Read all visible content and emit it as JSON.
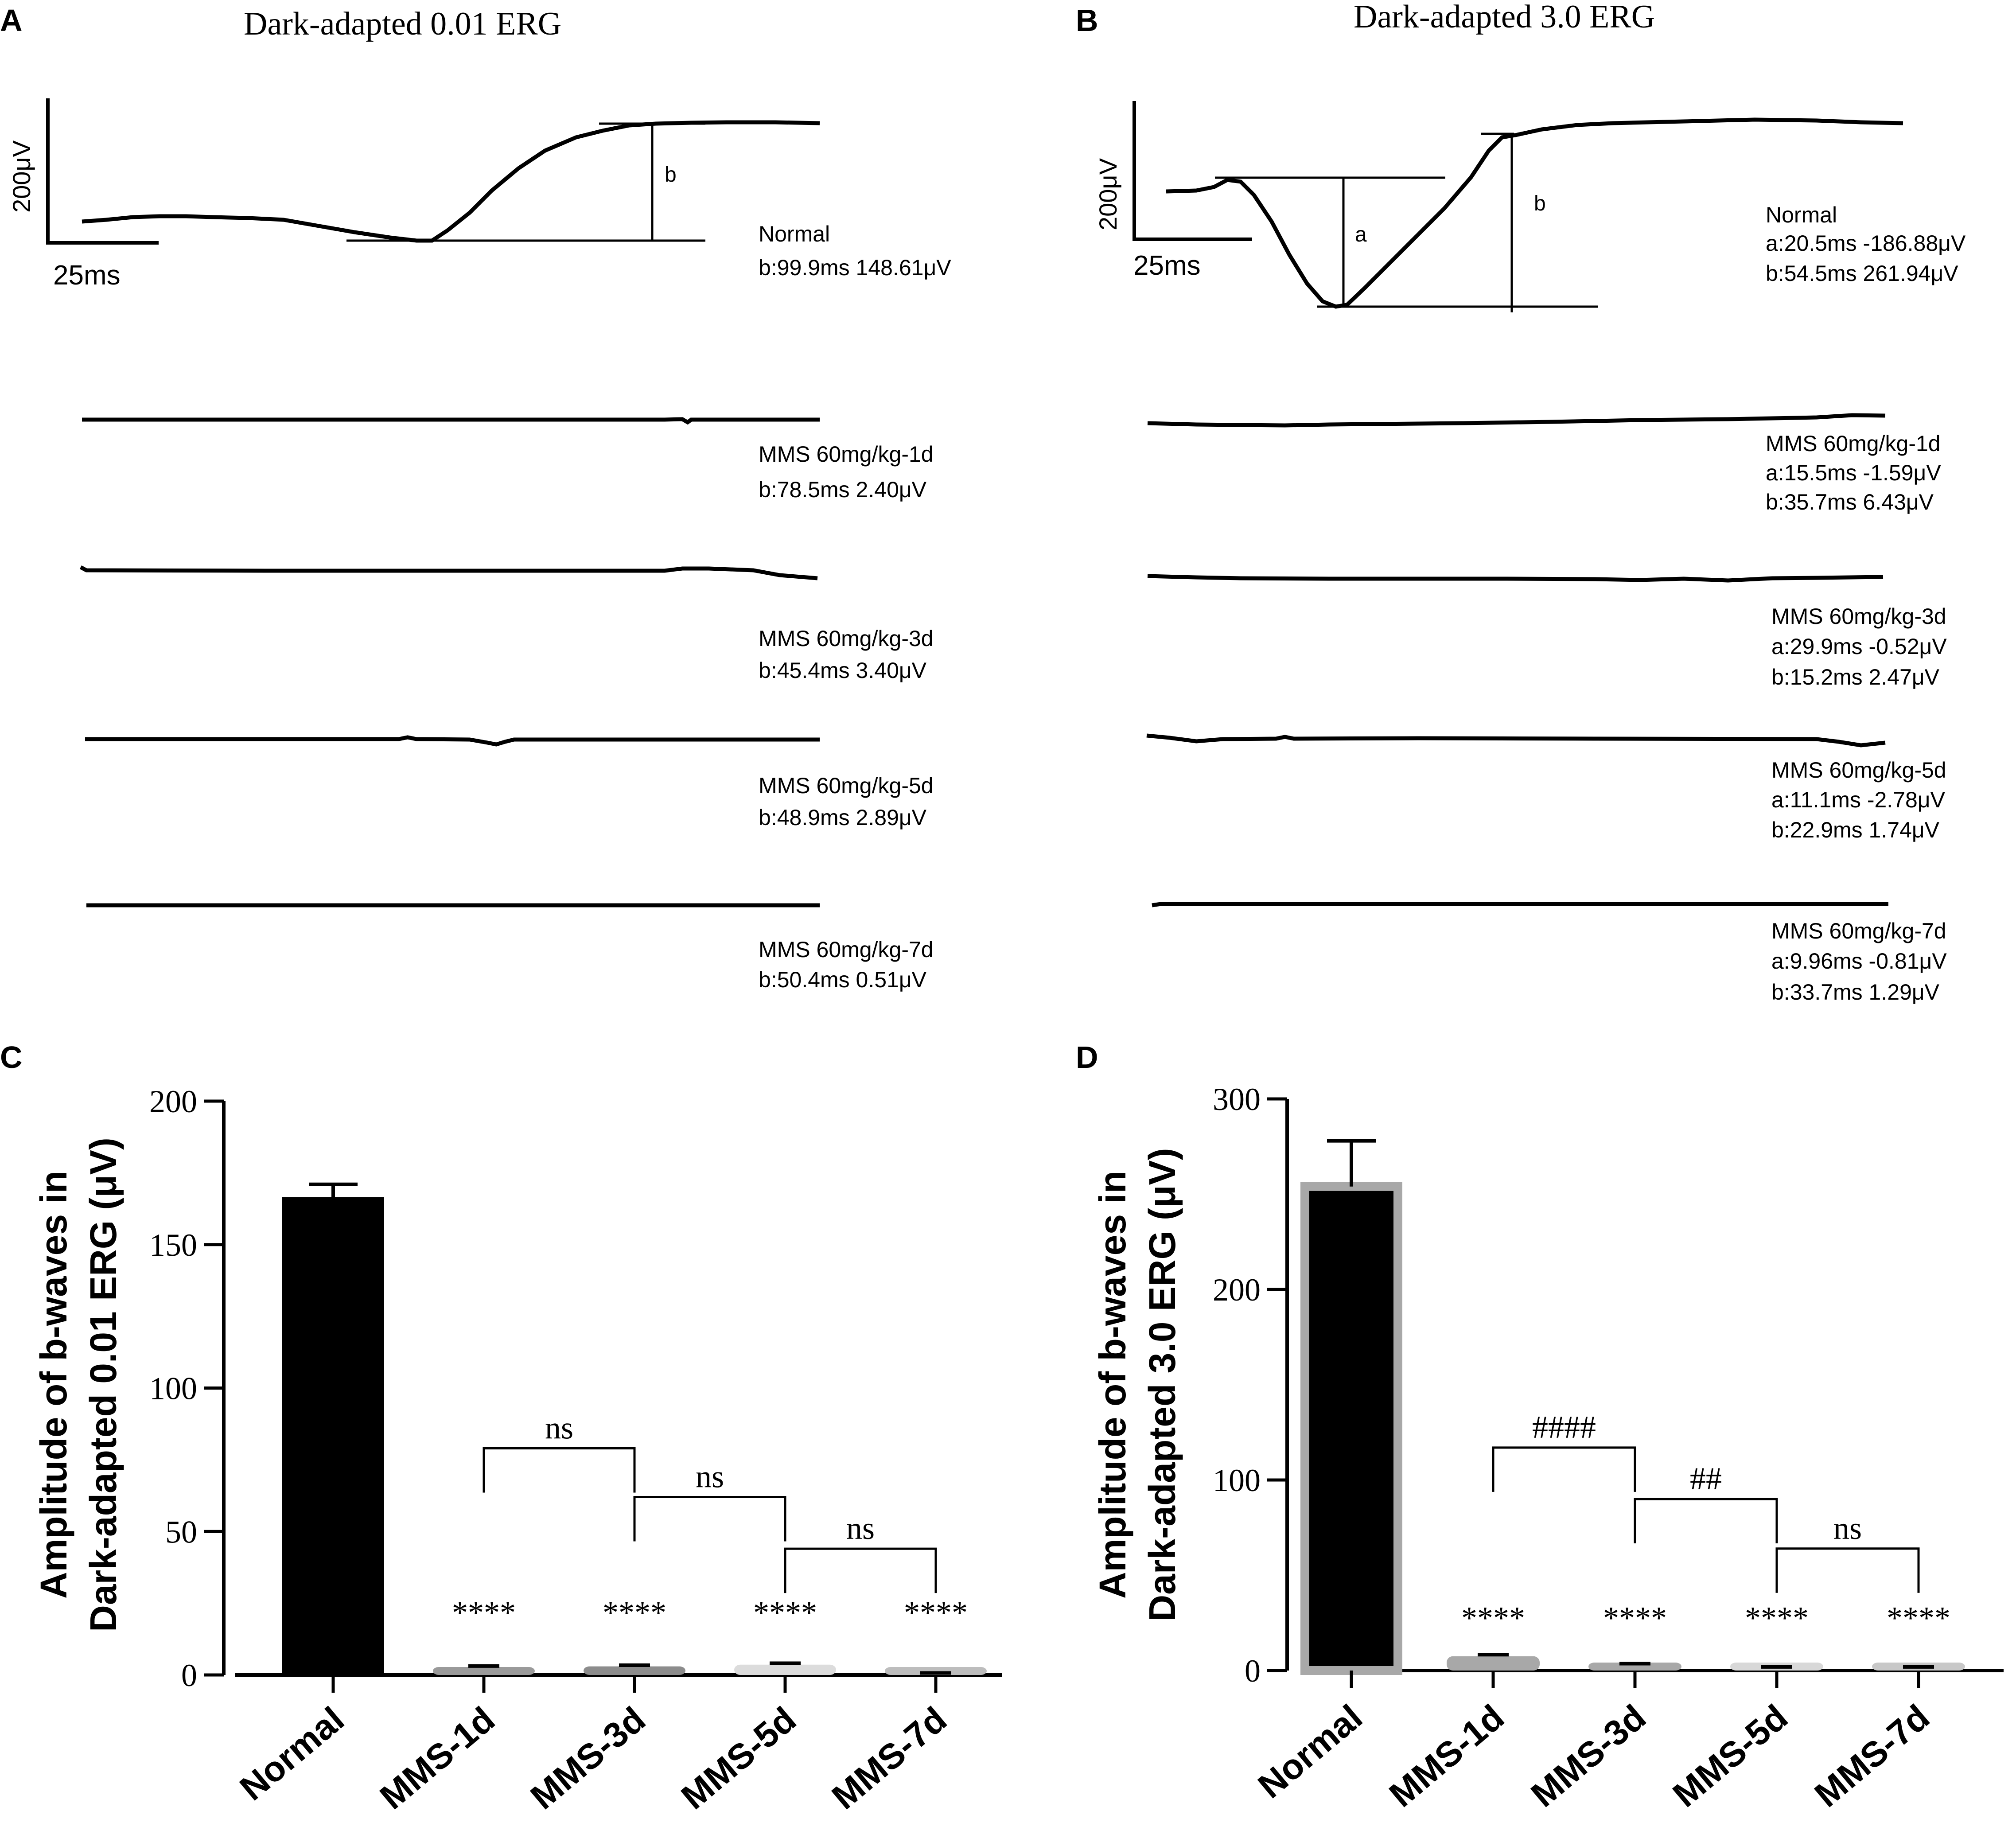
{
  "panels": {
    "A": {
      "label": "A",
      "title": "Dark-adapted 0.01 ERG",
      "scale_y": "200μV",
      "scale_x": "25ms",
      "marker_b": "b",
      "traces": [
        {
          "name": "Normal",
          "lines": [
            "Normal",
            "b:99.9ms 148.61μV"
          ]
        },
        {
          "name": "MMS 60mg/kg-1d",
          "lines": [
            "MMS 60mg/kg-1d",
            "b:78.5ms 2.40μV"
          ]
        },
        {
          "name": "MMS 60mg/kg-3d",
          "lines": [
            "MMS 60mg/kg-3d",
            "b:45.4ms 3.40μV"
          ]
        },
        {
          "name": "MMS 60mg/kg-5d",
          "lines": [
            "MMS 60mg/kg-5d",
            "b:48.9ms 2.89μV"
          ]
        },
        {
          "name": "MMS 60mg/kg-7d",
          "lines": [
            "MMS 60mg/kg-7d",
            "b:50.4ms 0.51μV"
          ]
        }
      ]
    },
    "B": {
      "label": "B",
      "title": "Dark-adapted 3.0 ERG",
      "scale_y": "200μV",
      "scale_x": "25ms",
      "marker_a": "a",
      "marker_b": "b",
      "traces": [
        {
          "name": "Normal",
          "lines": [
            "Normal",
            "a:20.5ms -186.88μV",
            "b:54.5ms 261.94μV"
          ]
        },
        {
          "name": "MMS 60mg/kg-1d",
          "lines": [
            "MMS 60mg/kg-1d",
            "a:15.5ms -1.59μV",
            "b:35.7ms 6.43μV"
          ]
        },
        {
          "name": "MMS 60mg/kg-3d",
          "lines": [
            "MMS 60mg/kg-3d",
            "a:29.9ms -0.52μV",
            "b:15.2ms 2.47μV"
          ]
        },
        {
          "name": "MMS 60mg/kg-5d",
          "lines": [
            "MMS 60mg/kg-5d",
            "a:11.1ms -2.78μV",
            "b:22.9ms 1.74μV"
          ]
        },
        {
          "name": "MMS 60mg/kg-7d",
          "lines": [
            "MMS 60mg/kg-7d",
            "a:9.96ms -0.81μV",
            "b:33.7ms 1.29μV"
          ]
        }
      ]
    },
    "C": {
      "label": "C"
    },
    "D": {
      "label": "D"
    }
  },
  "chart_data": [
    {
      "id": "C",
      "type": "bar",
      "ylabel_lines": [
        "Amplitude of b-waves in",
        "Dark-adapted 0.01 ERG (μV)"
      ],
      "categories": [
        "Normal",
        "MMS-1d",
        "MMS-3d",
        "MMS-5d",
        "MMS-7d"
      ],
      "values": [
        166.5,
        2.7,
        3.0,
        3.6,
        0.5
      ],
      "errors": [
        4.5,
        0.4,
        0.4,
        0.5,
        0.2
      ],
      "ylim": [
        0,
        200
      ],
      "yticks": [
        0,
        50,
        100,
        150,
        200
      ],
      "colors": [
        "#000000",
        "#9a9a9a",
        "#8c8c8c",
        "#dcdcdc",
        "#bdbdbd"
      ],
      "sig_stars": [
        "",
        "****",
        "****",
        "****",
        "****"
      ],
      "brackets": [
        {
          "from": 1,
          "to": 2,
          "label": "ns",
          "y": 79
        },
        {
          "from": 2,
          "to": 3,
          "label": "ns",
          "y": 62
        },
        {
          "from": 3,
          "to": 4,
          "label": "ns",
          "y": 44
        }
      ]
    },
    {
      "id": "D",
      "type": "bar",
      "ylabel_lines": [
        "Amplitude of b-waves in",
        "Dark-adapted 3.0 ERG (μV)"
      ],
      "categories": [
        "Normal",
        "MMS-1d",
        "MMS-3d",
        "MMS-5d",
        "MMS-7d"
      ],
      "values": [
        254,
        7.5,
        3.0,
        1.5,
        1.5
      ],
      "errors": [
        24,
        0.8,
        0.6,
        0.4,
        0.4
      ],
      "ylim": [
        0,
        300
      ],
      "yticks": [
        0,
        100,
        200,
        300
      ],
      "colors": [
        "#000000",
        "#a8a8a8",
        "#a8a8a8",
        "#d8d8d8",
        "#c8c8c8"
      ],
      "sig_stars": [
        "",
        "****",
        "****",
        "****",
        "****"
      ],
      "brackets": [
        {
          "from": 1,
          "to": 2,
          "label": "####",
          "y": 117
        },
        {
          "from": 2,
          "to": 3,
          "label": "##",
          "y": 90
        },
        {
          "from": 3,
          "to": 4,
          "label": "ns",
          "y": 64
        }
      ]
    }
  ]
}
